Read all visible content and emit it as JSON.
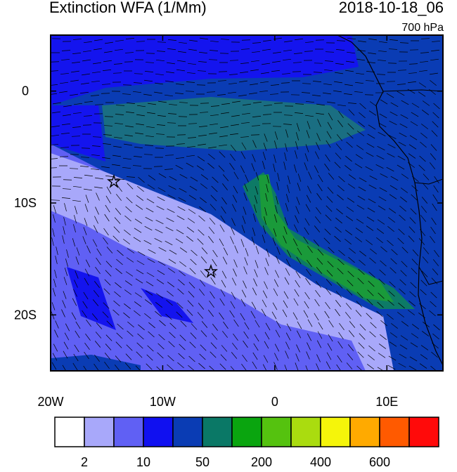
{
  "map": {
    "title": "Extinction WFA (1/Mm)",
    "timestamp": "2018-10-18_06",
    "level": "700 hPa",
    "lon_range": [
      -20,
      15
    ],
    "lat_range": [
      -25,
      5
    ],
    "lon_ticks": [
      {
        "value": -20,
        "label": "20W"
      },
      {
        "value": -10,
        "label": "10W"
      },
      0,
      {
        "value": 10,
        "label": "10E"
      }
    ],
    "lat_ticks": [
      0,
      {
        "value": -10,
        "label": "10S"
      },
      {
        "value": -20,
        "label": "20S"
      }
    ],
    "colorbar": {
      "colors": [
        "#ffffff",
        "#a8a8fa",
        "#6060f4",
        "#1010f0",
        "#0a3cb4",
        "#0a7866",
        "#0aa50f",
        "#55c20f",
        "#aadc0f",
        "#f5f50a",
        "#ffaa00",
        "#ff5a00",
        "#ff0a0a"
      ],
      "labels": [
        2,
        10,
        50,
        200,
        400,
        600
      ]
    }
  }
}
